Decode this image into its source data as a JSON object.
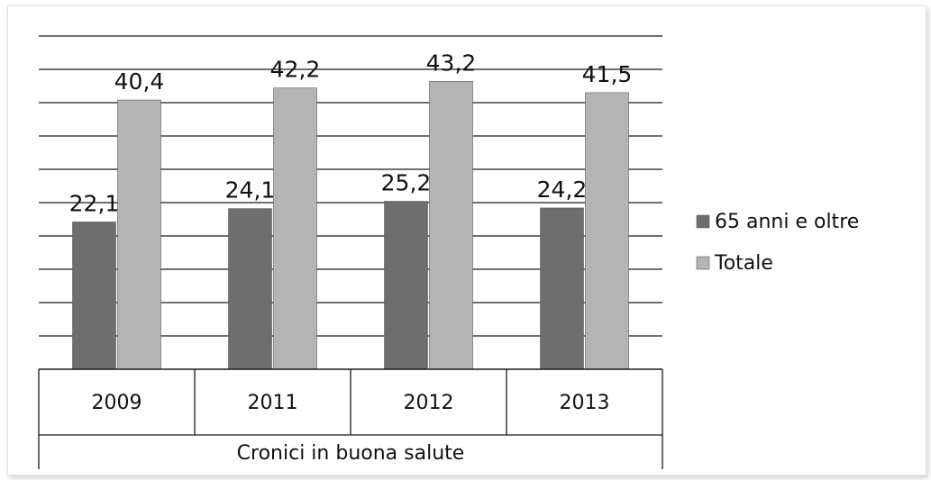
{
  "chart_data": {
    "type": "bar",
    "categories": [
      "2009",
      "2011",
      "2012",
      "2013"
    ],
    "group_label": "Cronici in buona salute",
    "series": [
      {
        "name": "65 anni e oltre",
        "values": [
          22.1,
          24.1,
          25.2,
          24.2
        ],
        "labels": [
          "22,1",
          "24,1",
          "25,2",
          "24,2"
        ],
        "color": "#6e6e6e"
      },
      {
        "name": "Totale",
        "values": [
          40.4,
          42.2,
          43.2,
          41.5
        ],
        "labels": [
          "40,4",
          "42,2",
          "43,2",
          "41,5"
        ],
        "color": "#b4b4b4"
      }
    ],
    "title": "",
    "xlabel": "",
    "ylabel": "",
    "ylim": [
      0,
      50
    ],
    "y_axis_labels_shown": false,
    "grid": true,
    "legend_position": "right"
  }
}
